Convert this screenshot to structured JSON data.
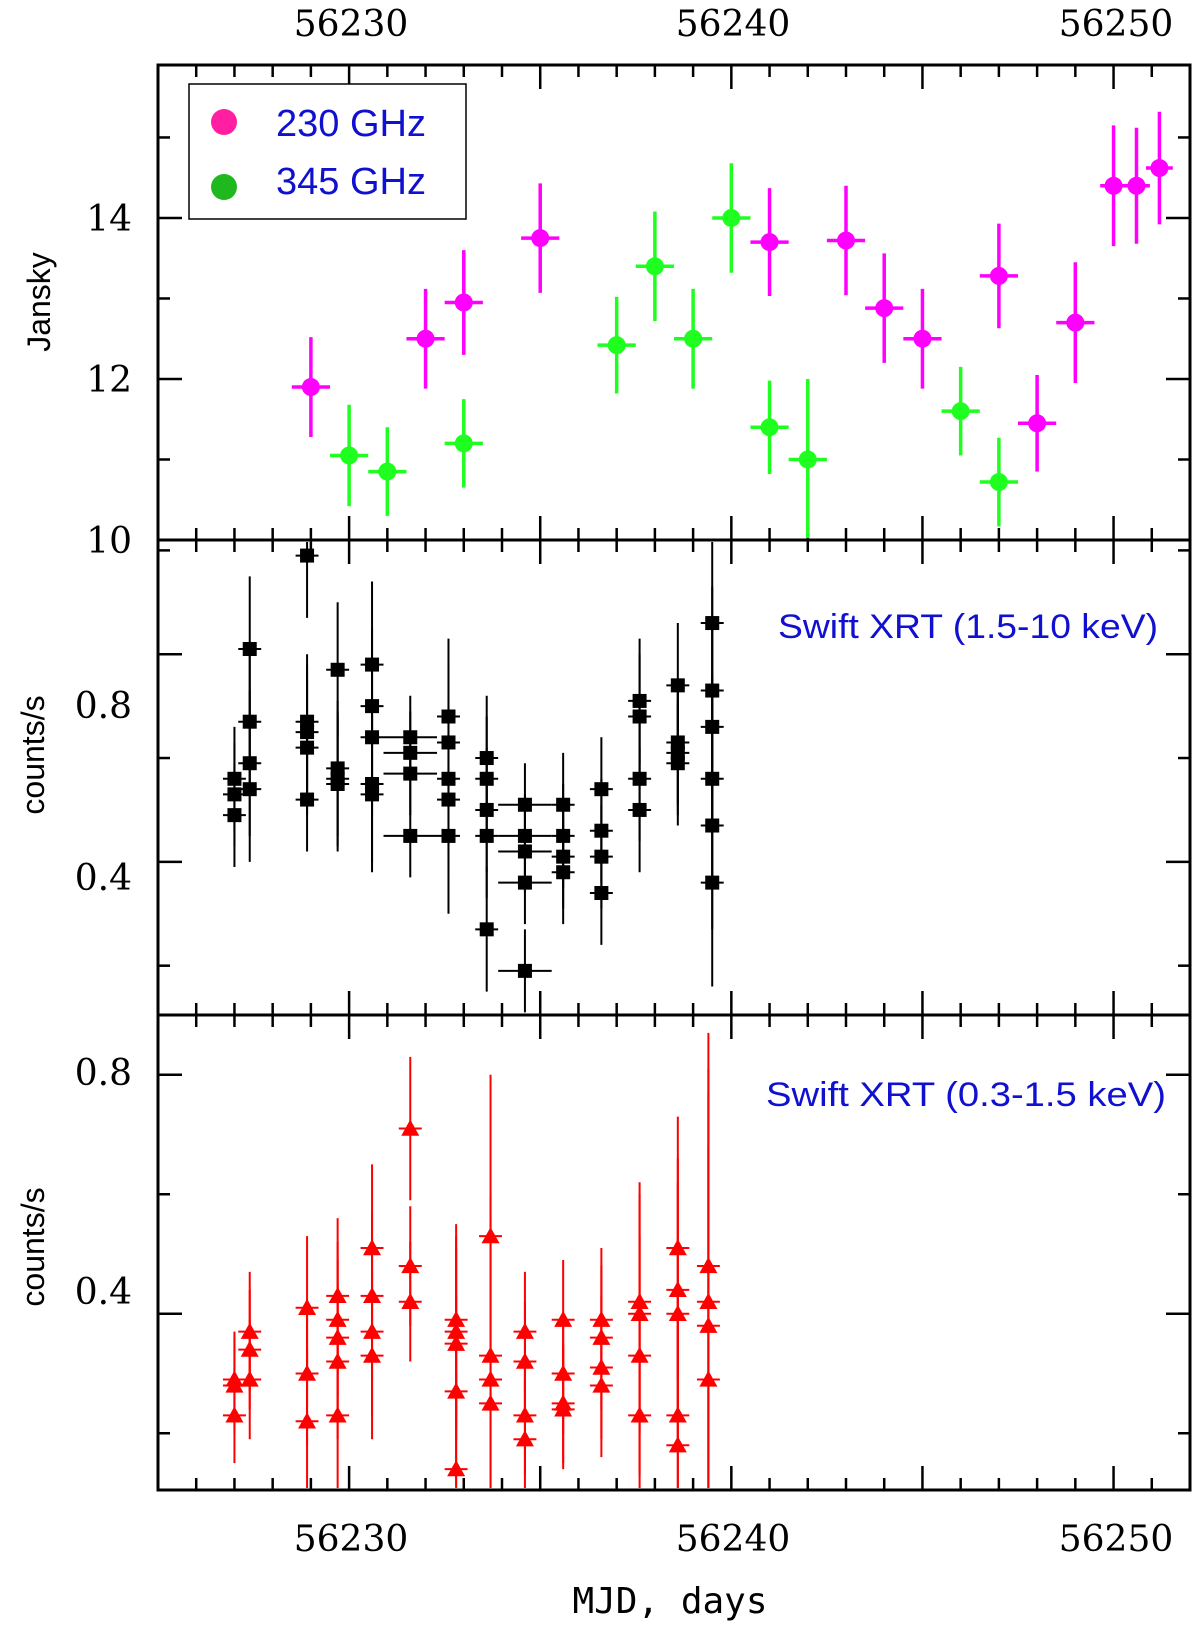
{
  "chart_data": {
    "type": "scatter",
    "xlabel": "MJD, days",
    "xlim": [
      56225.0,
      56252.0
    ],
    "x_ticks": [
      56230,
      56240,
      56250
    ],
    "x_tick_labels": [
      "56230",
      "56240",
      "56250"
    ],
    "panels": [
      {
        "id": "radio",
        "ylabel": "Jansky",
        "ylim": [
          10,
          15.9
        ],
        "y_ticks": [
          10,
          12,
          14
        ],
        "y_tick_labels": [
          "10",
          "12",
          "14"
        ],
        "legend": {
          "position": "top-left",
          "entries": [
            {
              "label": "230 GHz",
              "color": "#ff1fa0"
            },
            {
              "label": "345 GHz",
              "color": "#1fb81f"
            }
          ]
        },
        "series": [
          {
            "name": "230 GHz",
            "color": "#ff00ff",
            "marker": "circle",
            "x": [
              56229.0,
              56232.0,
              56233.0,
              56235.0,
              56241.0,
              56243.0,
              56244.0,
              56245.0,
              56247.0,
              56248.0,
              56249.0,
              56250.0,
              56250.6,
              56251.2
            ],
            "y": [
              11.9,
              12.5,
              12.95,
              13.75,
              13.7,
              13.72,
              12.88,
              12.5,
              13.28,
              11.45,
              12.7,
              14.4,
              14.4,
              14.62
            ],
            "xerr": [
              0.5,
              0.5,
              0.5,
              0.5,
              0.5,
              0.5,
              0.5,
              0.5,
              0.5,
              0.5,
              0.5,
              0.35,
              0.35,
              0.35
            ],
            "yerr": [
              0.62,
              0.62,
              0.65,
              0.68,
              0.67,
              0.68,
              0.68,
              0.62,
              0.65,
              0.6,
              0.75,
              0.75,
              0.72,
              0.7
            ]
          },
          {
            "name": "345 GHz",
            "color": "#1fff1f",
            "marker": "circle",
            "x": [
              56230.0,
              56231.0,
              56233.0,
              56237.0,
              56238.0,
              56239.0,
              56240.0,
              56241.0,
              56242.0,
              56246.0,
              56247.0
            ],
            "y": [
              11.05,
              10.85,
              11.2,
              12.42,
              13.4,
              12.5,
              14.0,
              11.4,
              11.0,
              11.6,
              10.72
            ],
            "xerr": [
              0.5,
              0.5,
              0.5,
              0.5,
              0.5,
              0.5,
              0.5,
              0.5,
              0.5,
              0.5,
              0.5
            ],
            "yerr": [
              0.63,
              0.55,
              0.55,
              0.6,
              0.68,
              0.62,
              0.68,
              0.58,
              1.0,
              0.55,
              0.55
            ]
          }
        ]
      },
      {
        "id": "xrt-hard",
        "ylabel": "counts/s",
        "annotation": "Swift XRT (1.5-10 keV)",
        "ylim": [
          0.105,
          1.02
        ],
        "y_ticks": [
          0.4,
          0.8
        ],
        "y_tick_labels": [
          "0.4",
          "0.8"
        ],
        "series": [
          {
            "name": "Swift XRT (1.5-10 keV)",
            "color": "#000000",
            "marker": "square",
            "x": [
              56227.0,
              56227.0,
              56227.0,
              56227.4,
              56227.4,
              56227.4,
              56227.4,
              56228.9,
              56228.9,
              56228.9,
              56228.9,
              56228.9,
              56229.7,
              56229.7,
              56229.7,
              56229.7,
              56230.6,
              56230.6,
              56230.6,
              56230.6,
              56230.6,
              56231.6,
              56231.6,
              56231.6,
              56231.6,
              56232.6,
              56232.6,
              56232.6,
              56232.6,
              56232.6,
              56233.6,
              56233.6,
              56233.6,
              56233.6,
              56233.6,
              56234.6,
              56234.6,
              56234.6,
              56234.6,
              56234.6,
              56235.6,
              56235.6,
              56235.6,
              56235.6,
              56236.6,
              56236.6,
              56236.6,
              56236.6,
              56237.6,
              56237.6,
              56237.6,
              56237.6,
              56238.6,
              56238.6,
              56238.6,
              56238.6,
              56239.5,
              56239.5,
              56239.5,
              56239.5,
              56239.5,
              56239.5
            ],
            "y": [
              0.56,
              0.53,
              0.49,
              0.81,
              0.67,
              0.59,
              0.54,
              0.99,
              0.67,
              0.65,
              0.62,
              0.52,
              0.77,
              0.58,
              0.56,
              0.55,
              0.78,
              0.7,
              0.64,
              0.55,
              0.53,
              0.64,
              0.61,
              0.57,
              0.45,
              0.68,
              0.63,
              0.56,
              0.52,
              0.45,
              0.6,
              0.56,
              0.5,
              0.45,
              0.27,
              0.51,
              0.45,
              0.42,
              0.36,
              0.19,
              0.51,
              0.45,
              0.41,
              0.38,
              0.54,
              0.46,
              0.41,
              0.34,
              0.71,
              0.68,
              0.56,
              0.5,
              0.74,
              0.63,
              0.61,
              0.59,
              0.86,
              0.73,
              0.66,
              0.56,
              0.47,
              0.36
            ],
            "xerr": [
              0.3,
              0.3,
              0.3,
              0.3,
              0.3,
              0.3,
              0.3,
              0.3,
              0.3,
              0.3,
              0.3,
              0.3,
              0.3,
              0.3,
              0.3,
              0.3,
              0.3,
              0.3,
              0.3,
              0.3,
              0.3,
              0.7,
              0.7,
              0.7,
              0.7,
              0.3,
              0.3,
              0.3,
              0.3,
              0.3,
              0.3,
              0.3,
              0.3,
              0.3,
              0.3,
              0.7,
              0.7,
              0.7,
              0.7,
              0.7,
              0.3,
              0.3,
              0.3,
              0.3,
              0.3,
              0.3,
              0.3,
              0.3,
              0.3,
              0.3,
              0.3,
              0.3,
              0.3,
              0.3,
              0.3,
              0.3,
              0.3,
              0.3,
              0.3,
              0.3,
              0.3,
              0.3
            ],
            "yerr": [
              0.1,
              0.1,
              0.1,
              0.14,
              0.14,
              0.14,
              0.14,
              0.12,
              0.13,
              0.13,
              0.13,
              0.1,
              0.13,
              0.13,
              0.13,
              0.13,
              0.16,
              0.15,
              0.15,
              0.15,
              0.15,
              0.08,
              0.08,
              0.08,
              0.08,
              0.15,
              0.15,
              0.15,
              0.15,
              0.15,
              0.12,
              0.12,
              0.12,
              0.12,
              0.12,
              0.08,
              0.08,
              0.08,
              0.08,
              0.08,
              0.1,
              0.1,
              0.1,
              0.1,
              0.1,
              0.1,
              0.1,
              0.1,
              0.12,
              0.12,
              0.12,
              0.12,
              0.12,
              0.12,
              0.12,
              0.12,
              0.2,
              0.2,
              0.2,
              0.2,
              0.2,
              0.2
            ]
          }
        ]
      },
      {
        "id": "xrt-soft",
        "ylabel": "counts/s",
        "annotation": "Swift XRT (0.3-1.5 keV)",
        "ylim": [
          0.105,
          0.9
        ],
        "y_ticks": [
          0.4,
          0.8
        ],
        "y_tick_labels": [
          "0.4",
          "0.8"
        ],
        "series": [
          {
            "name": "Swift XRT (0.3-1.5 keV)",
            "color": "#ff0000",
            "marker": "triangle",
            "x": [
              56227.0,
              56227.0,
              56227.0,
              56227.4,
              56227.4,
              56227.4,
              56228.9,
              56228.9,
              56228.9,
              56229.7,
              56229.7,
              56229.7,
              56229.7,
              56229.7,
              56230.6,
              56230.6,
              56230.6,
              56230.6,
              56231.6,
              56231.6,
              56231.6,
              56232.8,
              56232.8,
              56232.8,
              56232.8,
              56232.8,
              56233.7,
              56233.7,
              56233.7,
              56233.7,
              56234.6,
              56234.6,
              56234.6,
              56234.6,
              56235.6,
              56235.6,
              56235.6,
              56235.6,
              56236.6,
              56236.6,
              56236.6,
              56236.6,
              56237.6,
              56237.6,
              56237.6,
              56237.6,
              56238.6,
              56238.6,
              56238.6,
              56238.6,
              56238.6,
              56239.4,
              56239.4,
              56239.4,
              56239.4
            ],
            "y": [
              0.29,
              0.28,
              0.23,
              0.37,
              0.34,
              0.29,
              0.41,
              0.3,
              0.22,
              0.43,
              0.39,
              0.36,
              0.32,
              0.23,
              0.51,
              0.43,
              0.37,
              0.33,
              0.71,
              0.48,
              0.42,
              0.39,
              0.35,
              0.27,
              0.14,
              0.37,
              0.53,
              0.33,
              0.29,
              0.25,
              0.37,
              0.32,
              0.23,
              0.19,
              0.39,
              0.3,
              0.25,
              0.24,
              0.39,
              0.36,
              0.31,
              0.28,
              0.42,
              0.4,
              0.33,
              0.23,
              0.51,
              0.44,
              0.4,
              0.23,
              0.18,
              0.48,
              0.42,
              0.38,
              0.29
            ],
            "xerr": [
              0.3,
              0.3,
              0.3,
              0.3,
              0.3,
              0.3,
              0.3,
              0.3,
              0.3,
              0.3,
              0.3,
              0.3,
              0.3,
              0.3,
              0.3,
              0.3,
              0.3,
              0.3,
              0.3,
              0.3,
              0.3,
              0.3,
              0.3,
              0.3,
              0.3,
              0.3,
              0.3,
              0.3,
              0.3,
              0.3,
              0.3,
              0.3,
              0.3,
              0.3,
              0.3,
              0.3,
              0.3,
              0.3,
              0.3,
              0.3,
              0.3,
              0.3,
              0.3,
              0.3,
              0.3,
              0.3,
              0.3,
              0.3,
              0.3,
              0.3,
              0.3,
              0.3,
              0.3,
              0.3,
              0.3
            ],
            "yerr": [
              0.08,
              0.08,
              0.08,
              0.1,
              0.1,
              0.1,
              0.12,
              0.12,
              0.12,
              0.13,
              0.13,
              0.13,
              0.13,
              0.13,
              0.14,
              0.14,
              0.14,
              0.14,
              0.12,
              0.1,
              0.1,
              0.16,
              0.16,
              0.16,
              0.16,
              0.16,
              0.27,
              0.27,
              0.27,
              0.27,
              0.1,
              0.1,
              0.1,
              0.1,
              0.1,
              0.1,
              0.1,
              0.1,
              0.12,
              0.12,
              0.12,
              0.12,
              0.2,
              0.2,
              0.2,
              0.2,
              0.22,
              0.22,
              0.22,
              0.22,
              0.22,
              0.39,
              0.39,
              0.39,
              0.39
            ]
          }
        ]
      }
    ]
  }
}
